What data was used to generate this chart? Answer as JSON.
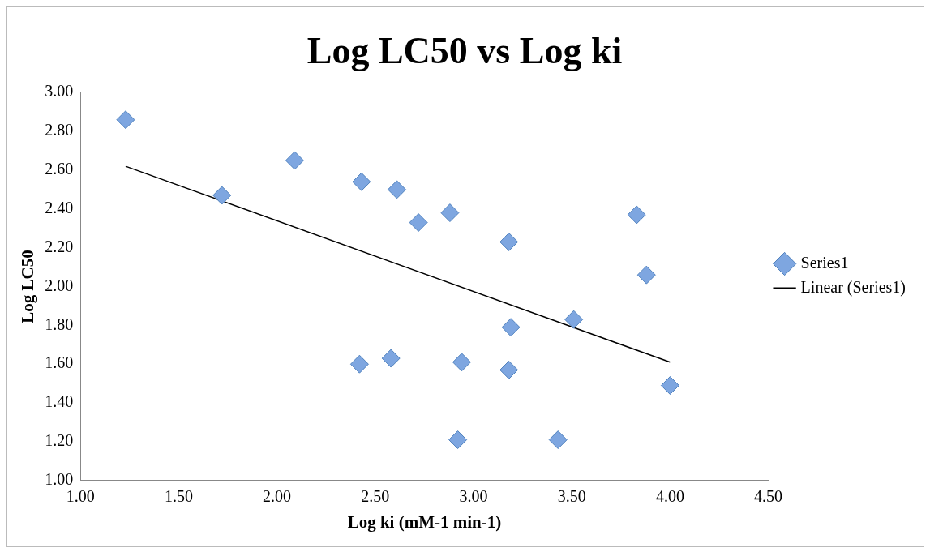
{
  "chart_data": {
    "type": "scatter",
    "title": "Log LC50 vs Log ki",
    "xlabel": "Log ki (mM-1 min-1)",
    "ylabel": "Log LC50",
    "xlim": [
      1,
      4.5
    ],
    "xticks": [
      {
        "value": 1,
        "label": "1.00"
      },
      {
        "value": 1.5,
        "label": "1.50"
      },
      {
        "value": 2,
        "label": "2.00"
      },
      {
        "value": 2.5,
        "label": "2.50"
      },
      {
        "value": 3,
        "label": "3.00"
      },
      {
        "value": 3.5,
        "label": "3.50"
      },
      {
        "value": 4,
        "label": "4.00"
      },
      {
        "value": 4.5,
        "label": "4.50"
      }
    ],
    "ylim": [
      1,
      3
    ],
    "yticks": [
      {
        "value": 1,
        "label": "1.00"
      },
      {
        "value": 1.2,
        "label": "1.20"
      },
      {
        "value": 1.4,
        "label": "1.40"
      },
      {
        "value": 1.6,
        "label": "1.60"
      },
      {
        "value": 1.8,
        "label": "1.80"
      },
      {
        "value": 2,
        "label": "2.00"
      },
      {
        "value": 2.2,
        "label": "2.20"
      },
      {
        "value": 2.4,
        "label": "2.40"
      },
      {
        "value": 2.6,
        "label": "2.60"
      },
      {
        "value": 2.8,
        "label": "2.80"
      },
      {
        "value": 3,
        "label": "3.00"
      }
    ],
    "grid": false,
    "legend": "right",
    "marker": "diamond",
    "series": [
      {
        "name": "Series1",
        "color": "#7ea6e0",
        "x": [
          1.23,
          1.72,
          2.09,
          2.43,
          2.61,
          2.72,
          2.88,
          3.18,
          2.42,
          2.58,
          2.94,
          3.18,
          3.19,
          3.51,
          3.83,
          3.88,
          4.0,
          2.92,
          3.43
        ],
        "values": [
          2.86,
          2.47,
          2.65,
          2.54,
          2.5,
          2.33,
          2.38,
          2.23,
          1.6,
          1.63,
          1.61,
          1.57,
          1.79,
          1.83,
          2.37,
          2.06,
          1.49,
          1.21,
          1.21
        ]
      },
      {
        "name": "Linear (Series1)",
        "type": "line",
        "color": "#000000",
        "line_style": "solid",
        "marker": "none",
        "x": [
          1.23,
          4.0
        ],
        "values": [
          2.62,
          1.61
        ]
      }
    ]
  }
}
